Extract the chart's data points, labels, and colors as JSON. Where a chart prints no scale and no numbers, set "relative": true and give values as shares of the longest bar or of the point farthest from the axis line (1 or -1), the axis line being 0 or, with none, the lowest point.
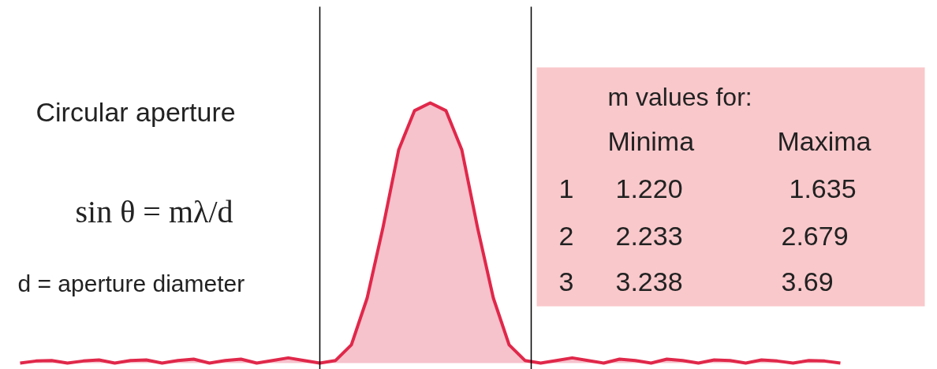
{
  "chart_data": {
    "type": "area",
    "relative": true,
    "color": "#e0284a",
    "tick_labels": false,
    "grid": false,
    "categories": [
      null,
      null,
      null,
      null,
      null,
      null,
      null,
      null,
      null,
      null,
      null,
      null,
      null,
      null,
      null,
      null,
      null,
      null,
      null,
      null,
      null,
      null,
      null,
      null,
      null,
      null,
      null,
      null,
      null,
      null,
      null,
      null,
      null,
      null,
      null,
      null,
      null,
      null,
      null,
      null,
      null,
      null,
      null,
      null,
      null,
      null,
      null,
      null,
      null,
      null,
      null,
      null,
      null
    ],
    "values": [
      0,
      0.008,
      0.01,
      0,
      0.008,
      0.012,
      0,
      0.01,
      0.012,
      0,
      0.01,
      0.015,
      0,
      0.01,
      0.015,
      0,
      0.01,
      0.02,
      0.01,
      0,
      0.01,
      0.07,
      0.25,
      0.52,
      0.82,
      0.97,
      1,
      0.97,
      0.82,
      0.52,
      0.25,
      0.07,
      0.01,
      0,
      0.01,
      0.02,
      0.01,
      0,
      0.015,
      0.01,
      0,
      0.015,
      0.01,
      0,
      0.012,
      0.01,
      0,
      0.012,
      0.008,
      0,
      0.01,
      0.008,
      0
    ],
    "annotations": [
      "Circular aperture",
      "sin θ = mλ/d",
      "d = aperture diameter",
      "m values for:",
      "Minima",
      "Maxima",
      "1",
      "1.220",
      "1.635",
      "2",
      "2.233",
      "2.679",
      "3",
      "3.238",
      "3.69"
    ]
  }
}
